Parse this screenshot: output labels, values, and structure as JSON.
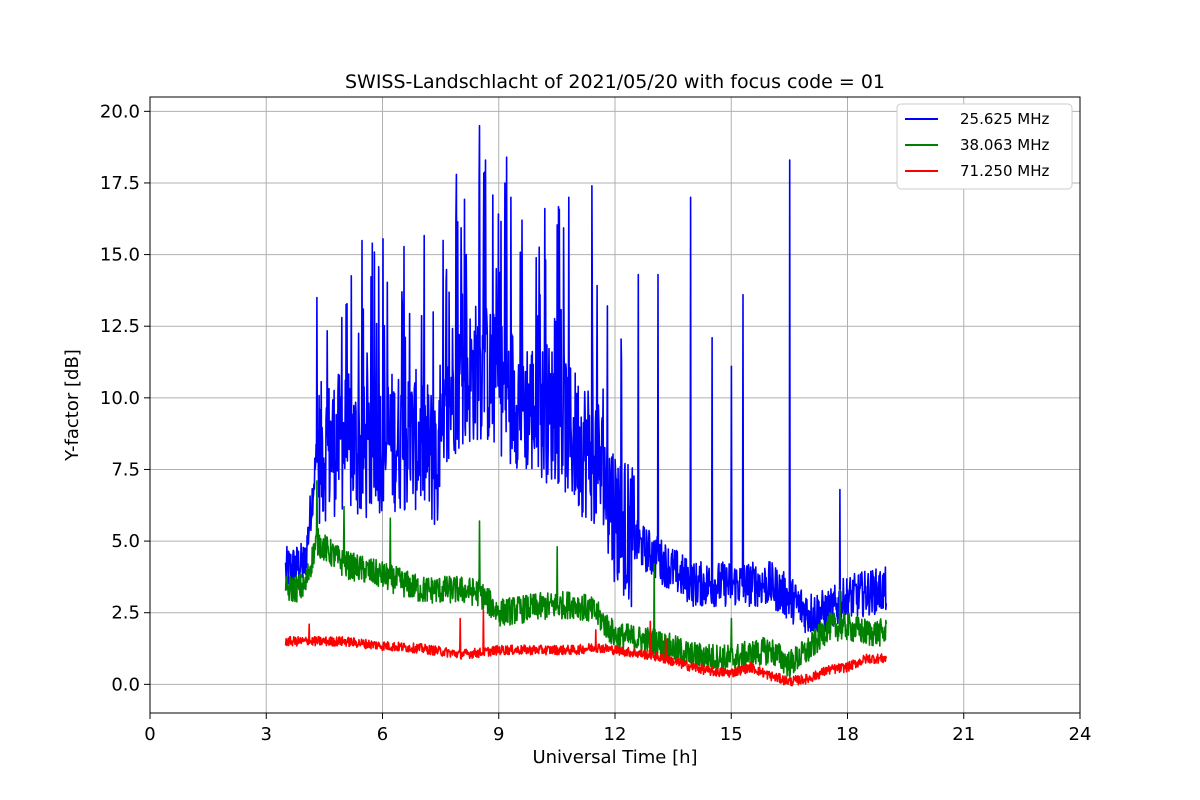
{
  "chart_data": {
    "type": "line",
    "title": "SWISS-Landschlacht of 2021/05/20 with focus code = 01",
    "xlabel": "Universal Time [h]",
    "ylabel": "Y-factor [dB]",
    "xlim": [
      0,
      24
    ],
    "ylim": [
      -1,
      20.5
    ],
    "xticks": [
      "0",
      "3",
      "6",
      "9",
      "12",
      "15",
      "18",
      "21",
      "24"
    ],
    "yticks": [
      "0.0",
      "2.5",
      "5.0",
      "7.5",
      "10.0",
      "12.5",
      "15.0",
      "17.5",
      "20.0"
    ],
    "grid": true,
    "legend_position": "top-right",
    "series": [
      {
        "name": "25.625 MHz",
        "color": "#0000ff",
        "x": [
          3.5,
          4.0,
          4.3,
          5.0,
          5.5,
          6.0,
          6.5,
          7.0,
          7.5,
          7.8,
          8.0,
          8.5,
          9.0,
          9.5,
          10.0,
          10.5,
          11.0,
          11.5,
          12.0,
          12.5,
          13.0,
          13.5,
          14.0,
          14.5,
          15.0,
          15.5,
          16.0,
          16.5,
          17.0,
          17.5,
          18.0,
          18.5,
          19.0
        ],
        "y": [
          4.0,
          4.2,
          8.0,
          8.5,
          8.0,
          8.5,
          8.5,
          8.5,
          7.5,
          10.5,
          10.5,
          11.0,
          10.5,
          10.0,
          9.5,
          9.5,
          8.5,
          8.0,
          6.0,
          5.0,
          4.5,
          4.0,
          3.5,
          3.5,
          3.5,
          3.5,
          3.5,
          3.0,
          2.5,
          2.5,
          3.0,
          3.2,
          3.3
        ],
        "peaks": [
          {
            "x": 4.3,
            "y": 12.8
          },
          {
            "x": 4.95,
            "y": 12.8
          },
          {
            "x": 5.5,
            "y": 13.1
          },
          {
            "x": 5.9,
            "y": 13.8
          },
          {
            "x": 6.5,
            "y": 13.7
          },
          {
            "x": 7.3,
            "y": 13.0
          },
          {
            "x": 7.9,
            "y": 17.8
          },
          {
            "x": 8.5,
            "y": 19.5
          },
          {
            "x": 8.65,
            "y": 18.3
          },
          {
            "x": 9.2,
            "y": 18.4
          },
          {
            "x": 9.6,
            "y": 16.2
          },
          {
            "x": 10.2,
            "y": 15.2
          },
          {
            "x": 10.8,
            "y": 17.0
          },
          {
            "x": 11.4,
            "y": 17.4
          },
          {
            "x": 11.8,
            "y": 16.8
          },
          {
            "x": 12.6,
            "y": 14.3
          },
          {
            "x": 13.1,
            "y": 14.3
          },
          {
            "x": 13.95,
            "y": 17.0
          },
          {
            "x": 14.5,
            "y": 12.1
          },
          {
            "x": 15.0,
            "y": 11.1
          },
          {
            "x": 15.3,
            "y": 13.6
          },
          {
            "x": 16.5,
            "y": 18.3
          },
          {
            "x": 17.8,
            "y": 6.8
          }
        ]
      },
      {
        "name": "38.063 MHz",
        "color": "#008000",
        "x": [
          3.5,
          4.0,
          4.3,
          5.0,
          6.0,
          7.0,
          8.0,
          8.5,
          9.0,
          10.0,
          11.0,
          11.5,
          12.0,
          13.0,
          14.0,
          15.0,
          16.0,
          16.5,
          17.0,
          17.5,
          18.0,
          18.5,
          19.0
        ],
        "y": [
          3.3,
          3.4,
          5.0,
          4.2,
          3.8,
          3.3,
          3.3,
          3.2,
          2.5,
          2.7,
          2.8,
          2.5,
          1.7,
          1.5,
          1.0,
          0.9,
          1.2,
          0.7,
          1.2,
          2.0,
          2.0,
          1.8,
          1.8
        ],
        "peaks": [
          {
            "x": 4.3,
            "y": 7.1
          },
          {
            "x": 5.0,
            "y": 6.2
          },
          {
            "x": 6.2,
            "y": 5.8
          },
          {
            "x": 8.5,
            "y": 5.7
          },
          {
            "x": 10.5,
            "y": 4.8
          },
          {
            "x": 13.0,
            "y": 4.2
          },
          {
            "x": 15.0,
            "y": 2.3
          },
          {
            "x": 17.8,
            "y": 3.3
          }
        ]
      },
      {
        "name": "71.250 MHz",
        "color": "#ff0000",
        "x": [
          3.5,
          4.0,
          5.0,
          6.0,
          7.0,
          8.0,
          8.5,
          9.0,
          10.0,
          11.0,
          11.5,
          12.0,
          13.0,
          13.5,
          14.0,
          14.5,
          15.0,
          15.5,
          16.0,
          16.5,
          17.0,
          17.5,
          18.0,
          18.5,
          19.0
        ],
        "y": [
          1.5,
          1.5,
          1.5,
          1.35,
          1.25,
          1.05,
          1.1,
          1.2,
          1.2,
          1.2,
          1.3,
          1.2,
          1.0,
          0.8,
          0.6,
          0.45,
          0.4,
          0.6,
          0.3,
          0.1,
          0.2,
          0.5,
          0.6,
          0.9,
          0.9
        ],
        "peaks": [
          {
            "x": 4.1,
            "y": 2.1
          },
          {
            "x": 8.0,
            "y": 2.3
          },
          {
            "x": 8.6,
            "y": 2.6
          },
          {
            "x": 11.5,
            "y": 1.9
          },
          {
            "x": 12.9,
            "y": 2.2
          },
          {
            "x": 13.3,
            "y": 1.6
          }
        ]
      }
    ]
  }
}
